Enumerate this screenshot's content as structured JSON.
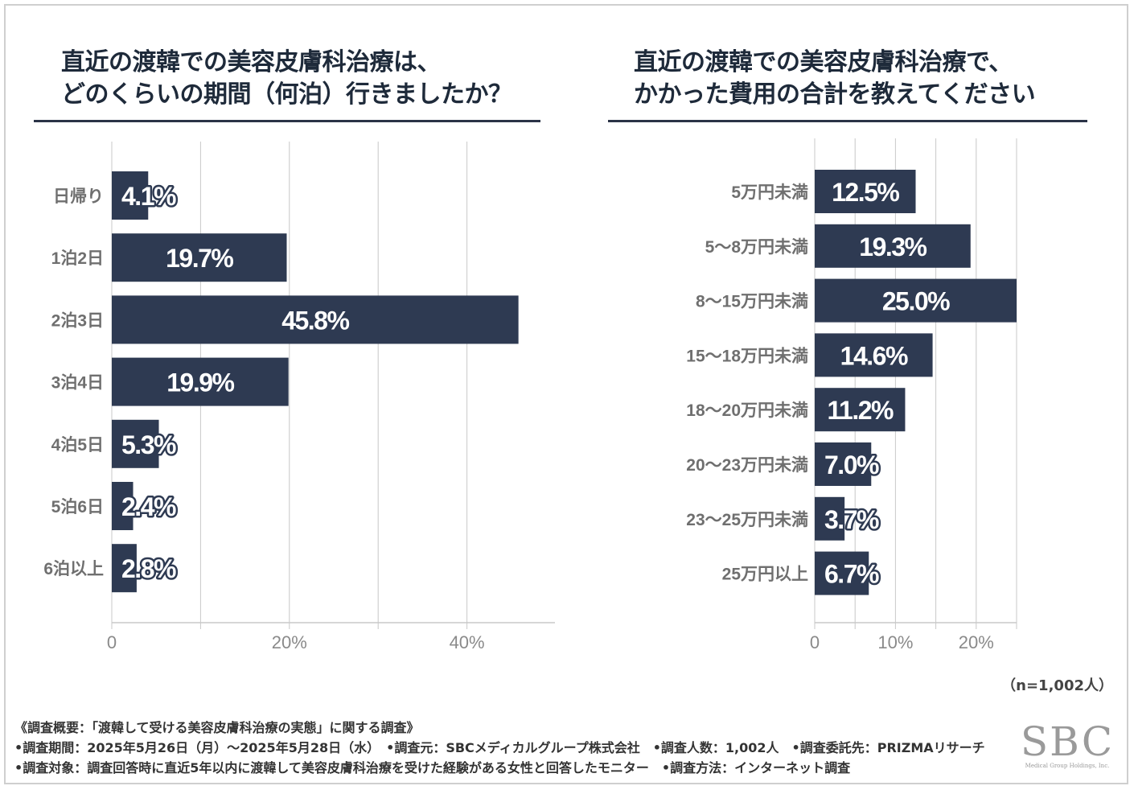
{
  "colors": {
    "bar": "#2e3a52",
    "grid": "#c8c8c8",
    "rule": "#2b3347",
    "label": "#6f6f6f",
    "title": "#1e2a3a"
  },
  "chart_data": [
    {
      "type": "bar",
      "orientation": "horizontal",
      "title": [
        "直近の渡韓での美容皮膚科治療は、",
        "どのくらいの期間（何泊）行きましたか？"
      ],
      "categories": [
        "日帰り",
        "1泊2日",
        "2泊3日",
        "3泊4日",
        "4泊5日",
        "5泊6日",
        "6泊以上"
      ],
      "values": [
        4.1,
        19.7,
        45.8,
        19.9,
        5.3,
        2.4,
        2.8
      ],
      "value_labels": [
        "4.1%",
        "19.7%",
        "45.8%",
        "19.9%",
        "5.3%",
        "2.4%",
        "2.8%"
      ],
      "xlim": [
        0,
        50
      ],
      "gridlines": [
        10,
        20,
        30,
        40
      ],
      "tick_values": [
        0,
        20,
        40
      ],
      "tick_labels": [
        "0",
        "20%",
        "40%"
      ],
      "xlabel": "",
      "ylabel": ""
    },
    {
      "type": "bar",
      "orientation": "horizontal",
      "title": [
        "直近の渡韓での美容皮膚科治療で、",
        "かかった費用の合計を教えてください"
      ],
      "categories": [
        "5万円未満",
        "5〜8万円未満",
        "8〜15万円未満",
        "15〜18万円未満",
        "18〜20万円未満",
        "20〜23万円未満",
        "23〜25万円未満",
        "25万円以上"
      ],
      "values": [
        12.5,
        19.3,
        25.0,
        14.6,
        11.2,
        7.0,
        3.7,
        6.7
      ],
      "value_labels": [
        "12.5%",
        "19.3%",
        "25.0%",
        "14.6%",
        "11.2%",
        "7.0%",
        "3.7%",
        "6.7%"
      ],
      "xlim": [
        0,
        25
      ],
      "gridlines": [
        5,
        10,
        15,
        20,
        25
      ],
      "tick_values": [
        0,
        10,
        20
      ],
      "tick_labels": [
        "0",
        "10%",
        "20%"
      ],
      "xlabel": "",
      "ylabel": ""
    }
  ],
  "sample_size": "（n=1,002人）",
  "notes": [
    "《調査概要：「渡韓して受ける美容皮膚科治療の実態」に関する調査》",
    "•調査期間：2025年5月26日（月）〜2025年5月28日（水）　•調査元：SBCメディカルグループ株式会社　•調査人数：1,002人　•調査委託先：PRIZMAリサーチ",
    "•調査対象：調査回答時に直近5年以内に渡韓して美容皮膚科治療を受けた経験がある女性と回答したモニター　•調査方法：インターネット調査"
  ],
  "logo": {
    "main": "SBC",
    "sub": "Medical Group Holdings, Inc."
  }
}
